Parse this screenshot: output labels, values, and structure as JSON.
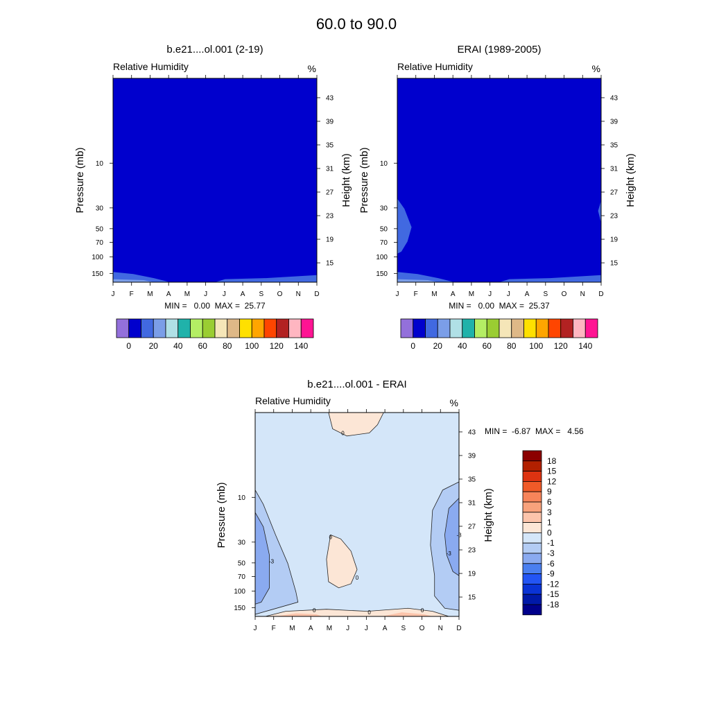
{
  "figure": {
    "title": "60.0 to  90.0"
  },
  "chart_data": [
    {
      "type": "heatmap",
      "title": "b.e21....ol.001 (2-19)",
      "left_label": "Relative Humidity",
      "units": "%",
      "xlabel": "",
      "ylabel": "Pressure (mb)",
      "ylabel_right": "Height (km)",
      "x_ticks": [
        "J",
        "F",
        "M",
        "A",
        "M",
        "J",
        "J",
        "A",
        "S",
        "O",
        "N",
        "D"
      ],
      "pressure_ticks": [
        "10",
        "30",
        "50",
        "70",
        "100",
        "150"
      ],
      "height_ticks": [
        "43",
        "39",
        "35",
        "31",
        "27",
        "23",
        "19",
        "15"
      ],
      "stats": "MIN =   0.00  MAX =  25.77",
      "colorbar": {
        "orientation": "horizontal",
        "levels": [
          "0",
          "20",
          "40",
          "60",
          "80",
          "100",
          "120",
          "140"
        ],
        "colors": [
          "#9370db",
          "#0000cd",
          "#4169e1",
          "#7b9ee8",
          "#b0e0e6",
          "#20b2aa",
          "#b4ee64",
          "#9acd32",
          "#f5e6b8",
          "#deb887",
          "#ffe000",
          "#ffa500",
          "#ff4500",
          "#b22222",
          "#ffb6c1",
          "#ff1493"
        ]
      },
      "field_colors": {
        "background": "#0000cd",
        "band_1": "#4169e1",
        "band_2": "#7b9ee8"
      }
    },
    {
      "type": "heatmap",
      "title": "ERAI (1989-2005)",
      "left_label": "Relative Humidity",
      "units": "%",
      "xlabel": "",
      "ylabel": "Pressure (mb)",
      "ylabel_right": "Height (km)",
      "x_ticks": [
        "J",
        "F",
        "M",
        "A",
        "M",
        "J",
        "J",
        "A",
        "S",
        "O",
        "N",
        "D"
      ],
      "pressure_ticks": [
        "10",
        "30",
        "50",
        "70",
        "100",
        "150"
      ],
      "height_ticks": [
        "43",
        "39",
        "35",
        "31",
        "27",
        "23",
        "19",
        "15"
      ],
      "stats": "MIN =   0.00  MAX =  25.37",
      "colorbar": {
        "orientation": "horizontal",
        "levels": [
          "0",
          "20",
          "40",
          "60",
          "80",
          "100",
          "120",
          "140"
        ],
        "colors": [
          "#9370db",
          "#0000cd",
          "#4169e1",
          "#7b9ee8",
          "#b0e0e6",
          "#20b2aa",
          "#b4ee64",
          "#9acd32",
          "#f5e6b8",
          "#deb887",
          "#ffe000",
          "#ffa500",
          "#ff4500",
          "#b22222",
          "#ffb6c1",
          "#ff1493"
        ]
      },
      "field_colors": {
        "background": "#0000cd",
        "band_1": "#4169e1",
        "band_2": "#7b9ee8"
      }
    },
    {
      "type": "heatmap",
      "title": "b.e21....ol.001 - ERAI",
      "left_label": "Relative Humidity",
      "units": "%",
      "xlabel": "",
      "ylabel": "Pressure (mb)",
      "ylabel_right": "Height (km)",
      "x_ticks": [
        "J",
        "F",
        "M",
        "A",
        "M",
        "J",
        "J",
        "A",
        "S",
        "O",
        "N",
        "D"
      ],
      "pressure_ticks": [
        "10",
        "30",
        "50",
        "70",
        "100",
        "150"
      ],
      "height_ticks": [
        "43",
        "39",
        "35",
        "31",
        "27",
        "23",
        "19",
        "15"
      ],
      "stats": "MIN =  -6.87  MAX =   4.56",
      "contour_labels": [
        "0",
        "0",
        "0",
        "0",
        "0",
        "0",
        "-3",
        "-3",
        "-3"
      ],
      "colorbar": {
        "orientation": "vertical",
        "levels": [
          "18",
          "15",
          "12",
          "9",
          "6",
          "3",
          "1",
          "0",
          "-1",
          "-3",
          "-6",
          "-9",
          "-12",
          "-15",
          "-18"
        ],
        "colors": [
          "#8b0000",
          "#b22000",
          "#dd3311",
          "#f05a28",
          "#f7845a",
          "#f8a27c",
          "#fcc4ab",
          "#fce6d6",
          "#d4e6f9",
          "#b3ccf4",
          "#8aaaf0",
          "#4a7ff0",
          "#2355f4",
          "#0a33d5",
          "#0019a8",
          "#00008b"
        ]
      },
      "field_colors": {
        "background": "#d4e6f9",
        "pos_1": "#fce6d6",
        "pos_2": "#fcc4ab",
        "neg_1": "#b3ccf4",
        "neg_2": "#8aaaf0"
      }
    }
  ]
}
